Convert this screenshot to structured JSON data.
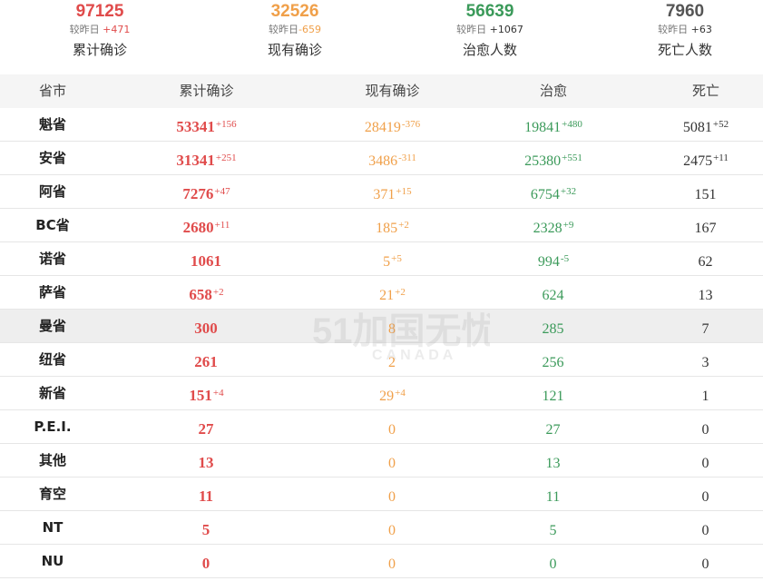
{
  "summary": [
    {
      "value": "97125",
      "cmp_label": "较昨日",
      "delta": "+471",
      "label": "累计确诊",
      "color": "#e04b4b"
    },
    {
      "value": "32526",
      "cmp_label": "较昨日",
      "delta": "-659",
      "label": "现有确诊",
      "color": "#f0a04a"
    },
    {
      "value": "56639",
      "cmp_label": "较昨日",
      "delta": "+1067",
      "label": "治愈人数",
      "color": "#3b9a5a"
    },
    {
      "value": "7960",
      "cmp_label": "较昨日",
      "delta": "+63",
      "label": "死亡人数",
      "color": "#555555"
    }
  ],
  "table": {
    "headers": [
      "省市",
      "累计确诊",
      "现有确诊",
      "治愈",
      "死亡"
    ],
    "rows": [
      {
        "province": "魁省",
        "confirmed": "53341",
        "confirmed_delta": "+156",
        "current": "28419",
        "current_delta": "-376",
        "cured": "19841",
        "cured_delta": "+480",
        "deaths": "5081",
        "deaths_delta": "+52"
      },
      {
        "province": "安省",
        "confirmed": "31341",
        "confirmed_delta": "+251",
        "current": "3486",
        "current_delta": "-311",
        "cured": "25380",
        "cured_delta": "+551",
        "deaths": "2475",
        "deaths_delta": "+11"
      },
      {
        "province": "阿省",
        "confirmed": "7276",
        "confirmed_delta": "+47",
        "current": "371",
        "current_delta": "+15",
        "cured": "6754",
        "cured_delta": "+32",
        "deaths": "151",
        "deaths_delta": ""
      },
      {
        "province": "BC省",
        "confirmed": "2680",
        "confirmed_delta": "+11",
        "current": "185",
        "current_delta": "+2",
        "cured": "2328",
        "cured_delta": "+9",
        "deaths": "167",
        "deaths_delta": ""
      },
      {
        "province": "诺省",
        "confirmed": "1061",
        "confirmed_delta": "",
        "current": "5",
        "current_delta": "+5",
        "cured": "994",
        "cured_delta": "-5",
        "deaths": "62",
        "deaths_delta": ""
      },
      {
        "province": "萨省",
        "confirmed": "658",
        "confirmed_delta": "+2",
        "current": "21",
        "current_delta": "+2",
        "cured": "624",
        "cured_delta": "",
        "deaths": "13",
        "deaths_delta": ""
      },
      {
        "province": "曼省",
        "confirmed": "300",
        "confirmed_delta": "",
        "current": "8",
        "current_delta": "",
        "cured": "285",
        "cured_delta": "",
        "deaths": "7",
        "deaths_delta": "",
        "highlight": true
      },
      {
        "province": "纽省",
        "confirmed": "261",
        "confirmed_delta": "",
        "current": "2",
        "current_delta": "",
        "cured": "256",
        "cured_delta": "",
        "deaths": "3",
        "deaths_delta": ""
      },
      {
        "province": "新省",
        "confirmed": "151",
        "confirmed_delta": "+4",
        "current": "29",
        "current_delta": "+4",
        "cured": "121",
        "cured_delta": "",
        "deaths": "1",
        "deaths_delta": ""
      },
      {
        "province": "P.E.I.",
        "confirmed": "27",
        "confirmed_delta": "",
        "current": "0",
        "current_delta": "",
        "cured": "27",
        "cured_delta": "",
        "deaths": "0",
        "deaths_delta": ""
      },
      {
        "province": "其他",
        "confirmed": "13",
        "confirmed_delta": "",
        "current": "0",
        "current_delta": "",
        "cured": "13",
        "cured_delta": "",
        "deaths": "0",
        "deaths_delta": ""
      },
      {
        "province": "育空",
        "confirmed": "11",
        "confirmed_delta": "",
        "current": "0",
        "current_delta": "",
        "cured": "11",
        "cured_delta": "",
        "deaths": "0",
        "deaths_delta": ""
      },
      {
        "province": "NT",
        "confirmed": "5",
        "confirmed_delta": "",
        "current": "0",
        "current_delta": "",
        "cured": "5",
        "cured_delta": "",
        "deaths": "0",
        "deaths_delta": ""
      },
      {
        "province": "NU",
        "confirmed": "0",
        "confirmed_delta": "",
        "current": "0",
        "current_delta": "",
        "cured": "0",
        "cured_delta": "",
        "deaths": "0",
        "deaths_delta": ""
      }
    ]
  },
  "watermark": {
    "logo_text": "51加国无忧",
    "sub_text": "CANADA"
  },
  "colors": {
    "confirmed": "#e04b4b",
    "current": "#f0a04a",
    "cured": "#3b9a5a",
    "deaths": "#333333",
    "header_bg": "#f5f5f5",
    "highlight_bg": "#eeeeee"
  }
}
